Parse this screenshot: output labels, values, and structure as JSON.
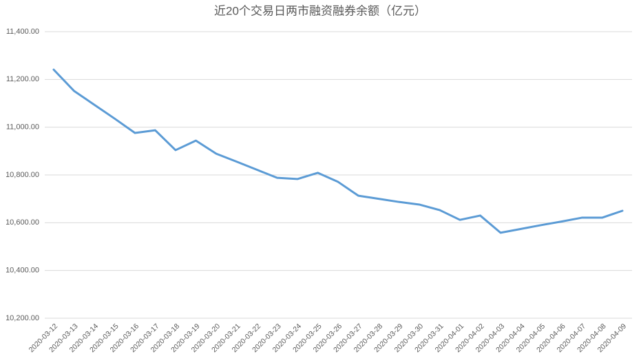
{
  "chart_data": {
    "type": "line",
    "title": "近20个交易日两市融资融券余额（亿元）",
    "categories": [
      "2020-03-12",
      "2020-03-13",
      "2020-03-14",
      "2020-03-15",
      "2020-03-16",
      "2020-03-17",
      "2020-03-18",
      "2020-03-19",
      "2020-03-20",
      "2020-03-21",
      "2020-03-22",
      "2020-03-23",
      "2020-03-24",
      "2020-03-25",
      "2020-03-26",
      "2020-03-27",
      "2020-03-28",
      "2020-03-29",
      "2020-03-30",
      "2020-03-31",
      "2020-04-01",
      "2020-04-02",
      "2020-04-03",
      "2020-04-04",
      "2020-04-05",
      "2020-04-06",
      "2020-04-07",
      "2020-04-08",
      "2020-04-09"
    ],
    "values": [
      11241,
      11152,
      11094,
      11036,
      10976,
      10987,
      10904,
      10944,
      10889,
      10856,
      10822,
      10788,
      10783,
      10809,
      10771,
      10713,
      10700,
      10687,
      10676,
      10653,
      10612,
      10630,
      10558,
      10574,
      10590,
      10605,
      10621,
      10621,
      10650
    ],
    "color": "#5b9bd5",
    "ylim": [
      10200,
      11400
    ],
    "yticks": [
      {
        "value": 10200,
        "label": "10,200.00"
      },
      {
        "value": 10400,
        "label": "10,400.00"
      },
      {
        "value": 10600,
        "label": "10,600.00"
      },
      {
        "value": 10800,
        "label": "10,800.00"
      },
      {
        "value": 11000,
        "label": "11,000.00"
      },
      {
        "value": 11200,
        "label": "11,200.00"
      },
      {
        "value": 11400,
        "label": "11,400.00"
      }
    ],
    "grid": true
  }
}
